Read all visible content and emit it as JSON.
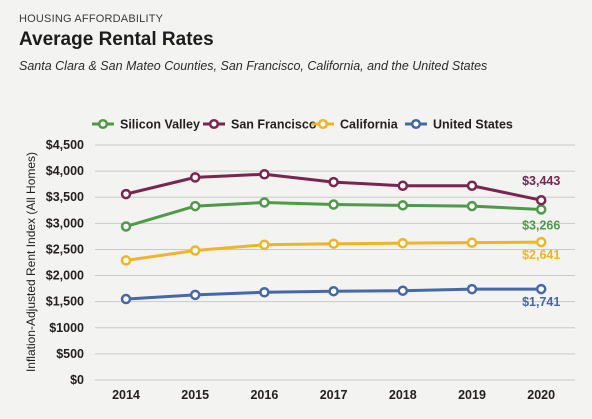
{
  "header": {
    "kicker": "HOUSING AFFORDABILITY",
    "title": "Average Rental Rates",
    "subtitle": "Santa Clara & San Mateo Counties, San Francisco, California, and the United States"
  },
  "chart_data": {
    "type": "line",
    "ylabel": "Inflation-Adjusted Rent Index (All Homes)",
    "xlabel": "",
    "x": [
      "2014",
      "2015",
      "2016",
      "2017",
      "2018",
      "2019",
      "2020"
    ],
    "ylim": [
      0,
      4500
    ],
    "yticks": [
      0,
      500,
      1000,
      1500,
      2000,
      2500,
      3000,
      3500,
      4000,
      4500
    ],
    "ytick_labels": [
      "$0",
      "$500",
      "$1000",
      "$1,500",
      "$2,000",
      "$2,500",
      "$3,000",
      "$3,500",
      "$4,000",
      "$4,500"
    ],
    "grid": true,
    "legend_placement": "top",
    "series": [
      {
        "name": "Silicon Valley",
        "color": "#4e9a47",
        "values": [
          2940,
          3330,
          3400,
          3360,
          3345,
          3330,
          3266
        ],
        "end_label": "$3,266"
      },
      {
        "name": "San Francisco",
        "color": "#7a2550",
        "values": [
          3560,
          3880,
          3940,
          3790,
          3720,
          3720,
          3443
        ],
        "end_label": "$3,443"
      },
      {
        "name": "California",
        "color": "#f0b429",
        "values": [
          2290,
          2480,
          2590,
          2610,
          2620,
          2630,
          2641
        ],
        "end_label": "$2,641"
      },
      {
        "name": "United States",
        "color": "#4568a8",
        "values": [
          1550,
          1630,
          1680,
          1700,
          1710,
          1740,
          1741
        ],
        "end_label": "$1,741"
      }
    ]
  }
}
